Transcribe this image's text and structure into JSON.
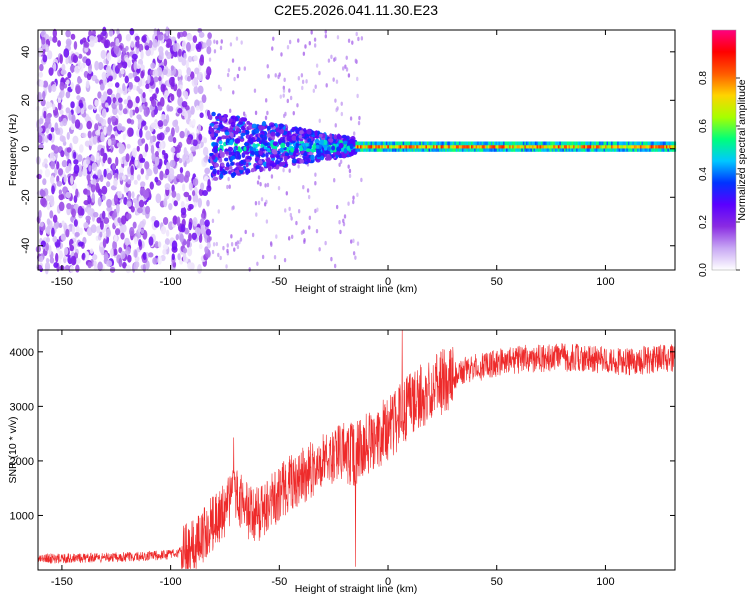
{
  "title": "C2E5.2026.041.11.30.E23",
  "chart_data": [
    {
      "type": "heatmap",
      "name": "spectrogram",
      "xlabel": "Height of straight line (km)",
      "ylabel": "Frequency (Hz)",
      "xlim": [
        -161,
        132
      ],
      "ylim": [
        -50,
        49
      ],
      "xticks": [
        -150,
        -100,
        -50,
        0,
        50,
        100
      ],
      "yticks": [
        -40,
        -20,
        0,
        20,
        40
      ],
      "grid": false,
      "colorbar": {
        "label": "Normalized spectral amplitude",
        "range": [
          0,
          1
        ],
        "ticks": [
          0.0,
          0.2,
          0.4,
          0.6,
          0.8
        ],
        "colormap": [
          "#ffffff",
          "#c8a8f4",
          "#8a2be2",
          "#5a00ff",
          "#0033ff",
          "#00c8ff",
          "#00ff7a",
          "#a6ff00",
          "#ffd400",
          "#ff5a00",
          "#ff0000",
          "#ff0080"
        ]
      },
      "features": [
        {
          "kind": "broadband-noise",
          "x_range": [
            -161,
            -82
          ],
          "freq_range": [
            -50,
            49
          ],
          "amplitude": 0.2
        },
        {
          "kind": "tapering-noise",
          "x_range": [
            -82,
            -15
          ],
          "freq_range": [
            -8,
            8
          ],
          "amplitude": 0.35
        },
        {
          "kind": "narrow-band",
          "x_range": [
            -15,
            132
          ],
          "center_freq": 1,
          "bandwidth": 4,
          "amplitude": 0.85
        }
      ]
    },
    {
      "type": "line",
      "name": "snr",
      "xlabel": "Height of straight line (km)",
      "ylabel": "SNR (10 * v/v)",
      "xlim": [
        -161,
        132
      ],
      "ylim": [
        0,
        4400
      ],
      "xticks": [
        -150,
        -100,
        -50,
        0,
        50,
        100
      ],
      "yticks": [
        1000,
        2000,
        3000,
        4000
      ],
      "grid": false,
      "series": [
        {
          "name": "SNR",
          "color": "#ee2a2a",
          "points": [
            [
              -161,
              200
            ],
            [
              -140,
              220
            ],
            [
              -120,
              240
            ],
            [
              -100,
              280
            ],
            [
              -95,
              330
            ],
            [
              -90,
              400
            ],
            [
              -85,
              600
            ],
            [
              -80,
              900
            ],
            [
              -75,
              1100
            ],
            [
              -70,
              1400
            ],
            [
              -65,
              1100
            ],
            [
              -60,
              1000
            ],
            [
              -55,
              1200
            ],
            [
              -50,
              1400
            ],
            [
              -45,
              1600
            ],
            [
              -40,
              1700
            ],
            [
              -35,
              1850
            ],
            [
              -30,
              2000
            ],
            [
              -25,
              2100
            ],
            [
              -20,
              2200
            ],
            [
              -15,
              2100
            ],
            [
              -10,
              2300
            ],
            [
              -5,
              2450
            ],
            [
              0,
              2600
            ],
            [
              5,
              2800
            ],
            [
              10,
              3000
            ],
            [
              15,
              3200
            ],
            [
              20,
              3300
            ],
            [
              25,
              3450
            ],
            [
              30,
              3550
            ],
            [
              35,
              3650
            ],
            [
              40,
              3700
            ],
            [
              50,
              3800
            ],
            [
              60,
              3860
            ],
            [
              70,
              3880
            ],
            [
              80,
              3900
            ],
            [
              90,
              3880
            ],
            [
              100,
              3850
            ],
            [
              110,
              3820
            ],
            [
              120,
              3850
            ],
            [
              132,
              3900
            ]
          ],
          "annotations": [
            {
              "kind": "spike",
              "x": 6.5,
              "value": 4400
            },
            {
              "kind": "spike",
              "x": -71,
              "value": 2430
            },
            {
              "kind": "drop",
              "x": -15,
              "value": 60
            }
          ]
        }
      ]
    }
  ]
}
